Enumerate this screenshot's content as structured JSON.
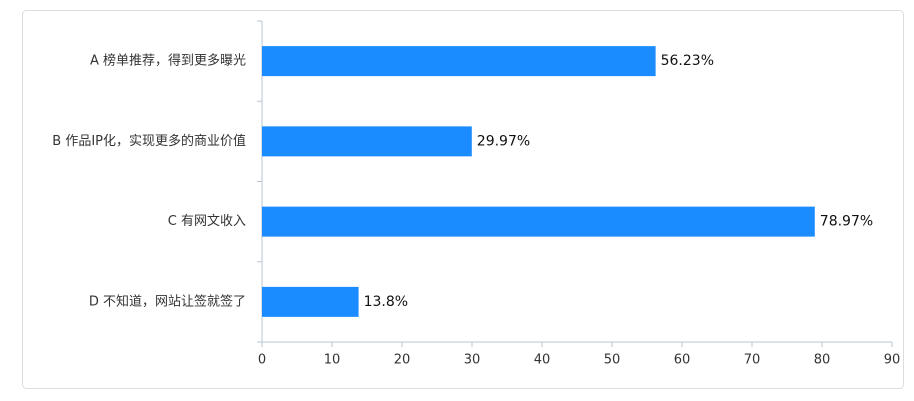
{
  "chart_data": {
    "type": "hbar",
    "categories": [
      "A 榜单推荐，得到更多曝光",
      "B 作品IP化，实现更多的商业价值",
      "C 有网文收入",
      "D 不知道，网站让签就签了"
    ],
    "values": [
      56.23,
      29.97,
      78.97,
      13.8
    ],
    "value_labels": [
      "56.23%",
      "29.97%",
      "78.97%",
      "13.8%"
    ],
    "color": "#1a8cff",
    "xlim": [
      0,
      90
    ],
    "xticks": [
      0,
      10,
      20,
      30,
      40,
      50,
      60,
      70,
      80,
      90
    ]
  }
}
